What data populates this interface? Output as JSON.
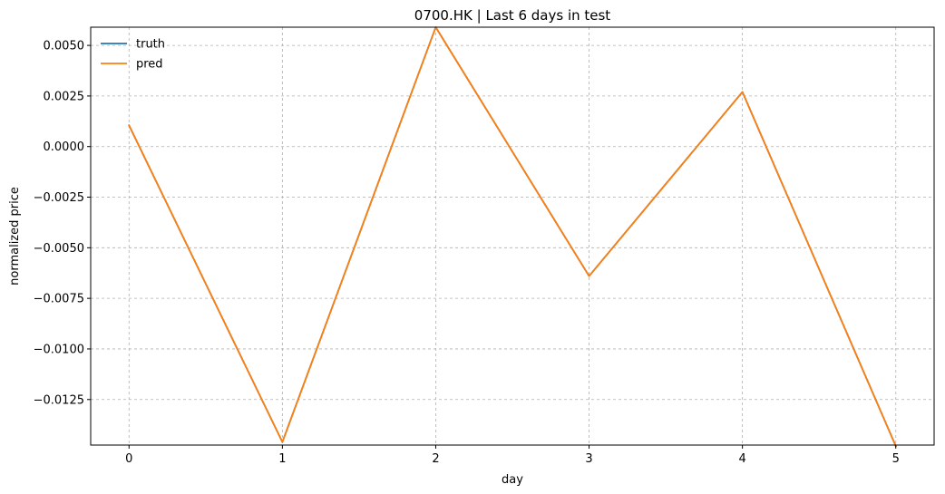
{
  "chart_data": {
    "type": "line",
    "title": "0700.HK | Last 6 days in test",
    "xlabel": "day",
    "ylabel": "normalized price",
    "x": [
      0,
      1,
      2,
      3,
      4,
      5
    ],
    "xticks": [
      0,
      1,
      2,
      3,
      4,
      5
    ],
    "xtick_labels": [
      "0",
      "1",
      "2",
      "3",
      "4",
      "5"
    ],
    "xlim": [
      -0.25,
      5.25
    ],
    "yticks": [
      0.005,
      0.0025,
      0.0,
      -0.0025,
      -0.005,
      -0.0075,
      -0.01,
      -0.0125
    ],
    "ytick_labels": [
      "0.0050",
      "0.0025",
      "0.0000",
      "−0.0025",
      "−0.0050",
      "−0.0075",
      "−0.0100",
      "−0.0125"
    ],
    "ylim": [
      -0.01475,
      0.0059
    ],
    "grid": true,
    "grid_style": "dashed",
    "legend_position": "top-left",
    "series": [
      {
        "name": "truth",
        "color": "#1f77b4",
        "values": [
          0.00105,
          -0.0146,
          0.0059,
          -0.0064,
          0.0027,
          -0.0148
        ]
      },
      {
        "name": "pred",
        "color": "#ff7f0e",
        "values": [
          0.00105,
          -0.0146,
          0.0059,
          -0.0064,
          0.0027,
          -0.0148
        ]
      }
    ]
  }
}
